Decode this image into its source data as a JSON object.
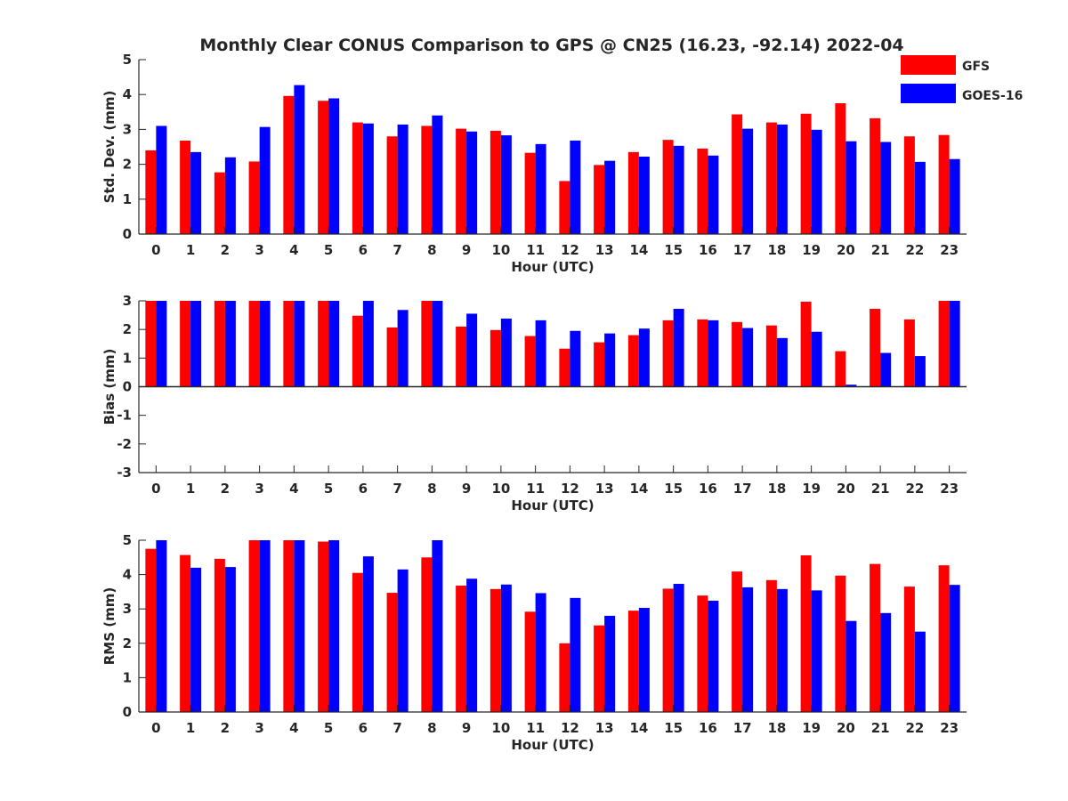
{
  "title": "Monthly Clear CONUS Comparison to GPS @ CN25 (16.23, -92.14) 2022-04",
  "legend": [
    {
      "name": "GFS",
      "color": "#ff0000"
    },
    {
      "name": "GOES-16",
      "color": "#0000ff"
    }
  ],
  "chart_data": [
    {
      "type": "bar",
      "xlabel": "Hour (UTC)",
      "ylabel": "Std. Dev. (mm)",
      "ylim": [
        0,
        5
      ],
      "yticks": [
        "0",
        "1",
        "2",
        "3",
        "4",
        "5"
      ],
      "categories": [
        "0",
        "1",
        "2",
        "3",
        "4",
        "5",
        "6",
        "7",
        "8",
        "9",
        "10",
        "11",
        "12",
        "13",
        "14",
        "15",
        "16",
        "17",
        "18",
        "19",
        "20",
        "21",
        "22",
        "23"
      ],
      "series": [
        {
          "name": "GFS",
          "color": "#ff0000",
          "values": [
            2.4,
            2.68,
            1.77,
            2.08,
            3.96,
            3.82,
            3.2,
            2.8,
            3.1,
            3.02,
            2.96,
            2.33,
            1.52,
            1.98,
            2.35,
            2.7,
            2.45,
            3.43,
            3.2,
            3.45,
            3.75,
            3.32,
            2.8,
            2.84
          ]
        },
        {
          "name": "GOES-16",
          "color": "#0000ff",
          "values": [
            3.1,
            2.35,
            2.2,
            3.07,
            4.27,
            3.89,
            3.17,
            3.14,
            3.4,
            2.94,
            2.83,
            2.58,
            2.68,
            2.1,
            2.22,
            2.53,
            2.25,
            3.02,
            3.14,
            2.99,
            2.66,
            2.64,
            2.07,
            2.15
          ]
        }
      ],
      "legend_position": "top-right"
    },
    {
      "type": "bar",
      "xlabel": "Hour (UTC)",
      "ylabel": "Bias (mm)",
      "ylim": [
        -3,
        3
      ],
      "yticks": [
        "-3",
        "-2",
        "-1",
        "0",
        "1",
        "2",
        "3"
      ],
      "categories": [
        "0",
        "1",
        "2",
        "3",
        "4",
        "5",
        "6",
        "7",
        "8",
        "9",
        "10",
        "11",
        "12",
        "13",
        "14",
        "15",
        "16",
        "17",
        "18",
        "19",
        "20",
        "21",
        "22",
        "23"
      ],
      "series": [
        {
          "name": "GFS",
          "color": "#ff0000",
          "values": [
            3.0,
            3.0,
            3.0,
            3.0,
            3.0,
            3.0,
            2.48,
            2.07,
            3.0,
            2.1,
            1.98,
            1.77,
            1.33,
            1.55,
            1.8,
            2.32,
            2.35,
            2.26,
            2.14,
            2.97,
            1.24,
            2.72,
            2.35,
            3.0
          ]
        },
        {
          "name": "GOES-16",
          "color": "#0000ff",
          "values": [
            3.0,
            3.0,
            3.0,
            3.0,
            3.0,
            3.0,
            3.0,
            2.68,
            3.0,
            2.55,
            2.38,
            2.32,
            1.95,
            1.86,
            2.03,
            2.72,
            2.32,
            2.05,
            1.7,
            1.92,
            0.07,
            1.18,
            1.07,
            3.0
          ]
        }
      ]
    },
    {
      "type": "bar",
      "xlabel": "Hour (UTC)",
      "ylabel": "RMS (mm)",
      "ylim": [
        0,
        5
      ],
      "yticks": [
        "0",
        "1",
        "2",
        "3",
        "4",
        "5"
      ],
      "categories": [
        "0",
        "1",
        "2",
        "3",
        "4",
        "5",
        "6",
        "7",
        "8",
        "9",
        "10",
        "11",
        "12",
        "13",
        "14",
        "15",
        "16",
        "17",
        "18",
        "19",
        "20",
        "21",
        "22",
        "23"
      ],
      "series": [
        {
          "name": "GFS",
          "color": "#ff0000",
          "values": [
            4.75,
            4.57,
            4.46,
            5.0,
            5.0,
            4.96,
            4.05,
            3.47,
            4.5,
            3.68,
            3.58,
            2.92,
            2.0,
            2.52,
            2.95,
            3.59,
            3.39,
            4.09,
            3.84,
            4.56,
            3.97,
            4.31,
            3.65,
            4.27
          ]
        },
        {
          "name": "GOES-16",
          "color": "#0000ff",
          "values": [
            5.0,
            4.2,
            4.22,
            5.0,
            5.0,
            5.0,
            4.53,
            4.15,
            5.0,
            3.88,
            3.71,
            3.46,
            3.32,
            2.8,
            3.03,
            3.73,
            3.24,
            3.63,
            3.58,
            3.54,
            2.65,
            2.88,
            2.34,
            3.7
          ]
        }
      ]
    }
  ]
}
